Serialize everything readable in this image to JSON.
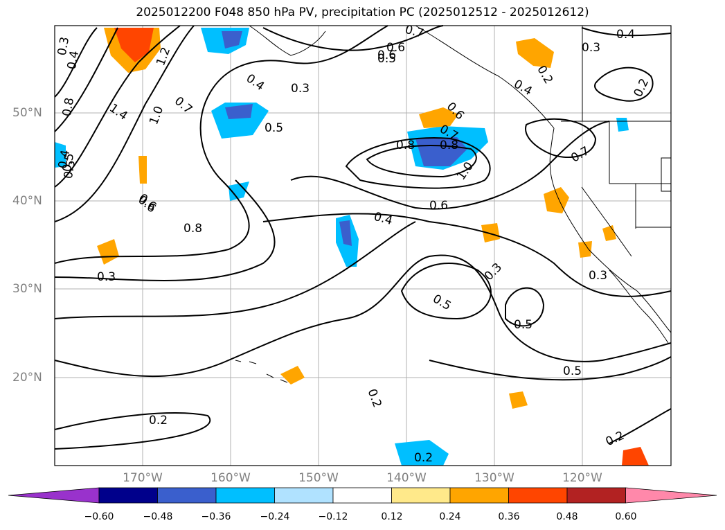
{
  "title": "2025012200 F048 850 hPa PV, precipitation PC (2025012512 - 2025012612)",
  "lat_labels": [
    "50°N",
    "40°N",
    "30°N",
    "20°N"
  ],
  "lon_labels": [
    "170°W",
    "160°W",
    "150°W",
    "140°W",
    "130°W",
    "120°W"
  ],
  "colorbar": {
    "ticks": [
      "−0.60",
      "−0.48",
      "−0.36",
      "−0.24",
      "−0.12",
      "0.12",
      "0.24",
      "0.36",
      "0.48",
      "0.60"
    ],
    "colors": [
      "#9932cc",
      "#00008b",
      "#3a5fcd",
      "#00bfff",
      "#b0e2ff",
      "#ffffff",
      "#ffe98a",
      "#ffa500",
      "#ff4500",
      "#b22222",
      "#ff88aa"
    ]
  },
  "contour_labels": [
    "0.3",
    "0.4",
    "0.5",
    "0.6",
    "0.7",
    "0.8",
    "1.0",
    "1.2",
    "1.4",
    "0.2",
    "0.3",
    "0.4",
    "0.5",
    "0.6",
    "0.7",
    "0.8",
    "1.0",
    "0.2",
    "0.2",
    "0.2",
    "0.3",
    "0.5",
    "0.5",
    "0.5",
    "0.3",
    "0.4",
    "0.6",
    "0.4",
    "0.6",
    "0.5",
    "0.3",
    "0.2",
    "0.7",
    "0.8",
    "0.3",
    "0.2",
    "0.4",
    "0.5",
    "0.7",
    "0.6",
    "0.6",
    "0.4",
    "0.8"
  ]
}
